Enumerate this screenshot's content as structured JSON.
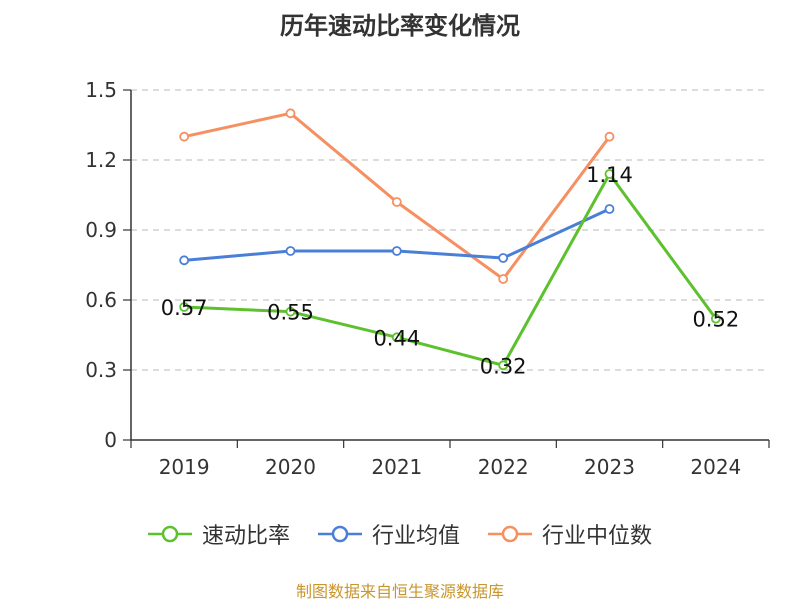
{
  "chart_data": {
    "type": "line",
    "title": "历年速动比率变化情况",
    "categories": [
      "2019",
      "2020",
      "2021",
      "2022",
      "2023",
      "2024"
    ],
    "ylim": [
      0,
      1.5
    ],
    "yticks": [
      "0",
      "0.3",
      "0.6",
      "0.9",
      "1.2",
      "1.5"
    ],
    "ytick_values": [
      0,
      0.3,
      0.6,
      0.9,
      1.2,
      1.5
    ],
    "grid": true,
    "legend_position": "bottom",
    "series": [
      {
        "name": "速动比率",
        "color": "#5dc12e",
        "values": [
          0.57,
          0.55,
          0.44,
          0.32,
          1.14,
          0.52
        ],
        "labels": [
          "0.57",
          "0.55",
          "0.44",
          "0.32",
          "1.14",
          "0.52"
        ]
      },
      {
        "name": "行业均值",
        "color": "#4a7fd8",
        "values": [
          0.77,
          0.81,
          0.81,
          0.78,
          0.99,
          null
        ]
      },
      {
        "name": "行业中位数",
        "color": "#f59062",
        "values": [
          1.3,
          1.4,
          1.02,
          0.69,
          1.3,
          null
        ]
      }
    ]
  },
  "footer": {
    "source": "制图数据来自恒生聚源数据库"
  }
}
